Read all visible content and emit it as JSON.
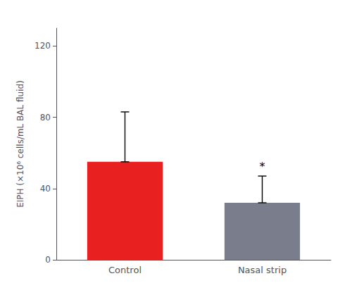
{
  "chart_data": {
    "type": "bar",
    "categories": [
      "Control",
      "Nasal strip"
    ],
    "values": [
      55,
      32
    ],
    "colors": [
      "#e82020",
      "#7a7e8c"
    ],
    "error_upper": [
      28,
      15
    ],
    "error_lower": [
      0,
      0
    ],
    "ylabel": "EIPH (×10⁶ cells/mL BAL fluid)",
    "ylim": [
      0,
      130
    ],
    "yticks": [
      0,
      40,
      80,
      120
    ],
    "grid": false,
    "annotations": [
      {
        "text": "*",
        "x": "Nasal strip",
        "y": 49
      }
    ]
  }
}
